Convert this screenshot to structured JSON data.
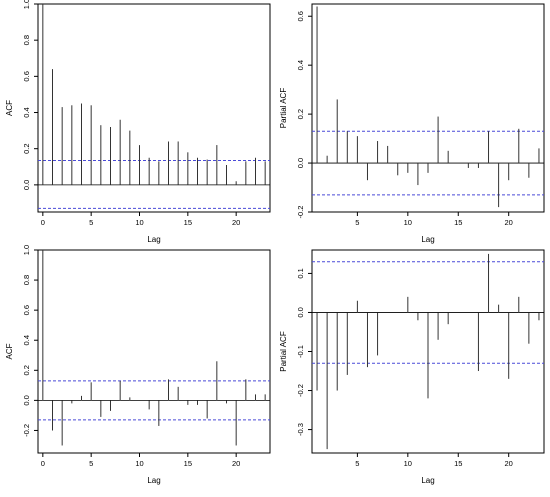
{
  "chart_data": [
    {
      "type": "bar",
      "xlabel": "Lag",
      "ylabel": "ACF",
      "x": [
        0,
        1,
        2,
        3,
        4,
        5,
        6,
        7,
        8,
        9,
        10,
        11,
        12,
        13,
        14,
        15,
        16,
        17,
        18,
        19,
        20,
        21,
        22,
        23
      ],
      "values": [
        1.0,
        0.64,
        0.43,
        0.44,
        0.45,
        0.44,
        0.33,
        0.32,
        0.36,
        0.3,
        0.22,
        0.15,
        0.13,
        0.24,
        0.24,
        0.18,
        0.15,
        0.14,
        0.22,
        0.11,
        0.02,
        0.13,
        0.15,
        0.13
      ],
      "conf_band": [
        0.135,
        -0.13
      ],
      "xlim": [
        -0.5,
        23.5
      ],
      "ylim": [
        -0.15,
        1.0
      ],
      "xticks": [
        0,
        5,
        10,
        15,
        20
      ],
      "xtick_labels": [
        "0",
        "5",
        "10",
        "15",
        "20"
      ],
      "yticks": [
        0,
        0.2,
        0.4,
        0.6,
        0.8,
        1.0
      ],
      "ytick_labels": [
        "0.0",
        "0.2",
        "0.4",
        "0.6",
        "0.8",
        "1.0"
      ]
    },
    {
      "type": "bar",
      "xlabel": "Lag",
      "ylabel": "Partial ACF",
      "x": [
        1,
        2,
        3,
        4,
        5,
        6,
        7,
        8,
        9,
        10,
        11,
        12,
        13,
        14,
        15,
        16,
        17,
        18,
        19,
        20,
        21,
        22,
        23
      ],
      "values": [
        0.64,
        0.03,
        0.26,
        0.13,
        0.11,
        -0.07,
        0.09,
        0.07,
        -0.05,
        -0.04,
        -0.09,
        -0.04,
        0.19,
        0.05,
        0.0,
        -0.02,
        -0.02,
        0.13,
        -0.18,
        -0.07,
        0.14,
        -0.06,
        0.06
      ],
      "conf_band": [
        0.13,
        -0.13
      ],
      "xlim": [
        0.5,
        23.5
      ],
      "ylim": [
        -0.2,
        0.65
      ],
      "xticks": [
        5,
        10,
        15,
        20
      ],
      "xtick_labels": [
        "5",
        "10",
        "15",
        "20"
      ],
      "yticks": [
        -0.2,
        0.0,
        0.2,
        0.4,
        0.6
      ],
      "ytick_labels": [
        "-0.2",
        "0.0",
        "0.2",
        "0.4",
        "0.6"
      ]
    },
    {
      "type": "bar",
      "xlabel": "Lag",
      "ylabel": "ACF",
      "x": [
        0,
        1,
        2,
        3,
        4,
        5,
        6,
        7,
        8,
        9,
        10,
        11,
        12,
        13,
        14,
        15,
        16,
        17,
        18,
        19,
        20,
        21,
        22,
        23
      ],
      "values": [
        1.0,
        -0.2,
        -0.3,
        -0.02,
        0.03,
        0.12,
        -0.11,
        -0.07,
        0.13,
        0.02,
        0.0,
        -0.06,
        -0.17,
        0.14,
        0.09,
        -0.03,
        -0.03,
        -0.12,
        0.26,
        -0.02,
        -0.3,
        0.14,
        0.04,
        0.04
      ],
      "conf_band": [
        0.13,
        -0.13
      ],
      "xlim": [
        -0.5,
        23.5
      ],
      "ylim": [
        -0.35,
        1.0
      ],
      "xticks": [
        0,
        5,
        10,
        15,
        20
      ],
      "xtick_labels": [
        "0",
        "5",
        "10",
        "15",
        "20"
      ],
      "yticks": [
        -0.2,
        0.0,
        0.2,
        0.4,
        0.6,
        0.8,
        1.0
      ],
      "ytick_labels": [
        "-0.2",
        "0.0",
        "0.2",
        "0.4",
        "0.6",
        "0.8",
        "1.0"
      ]
    },
    {
      "type": "bar",
      "xlabel": "Lag",
      "ylabel": "Partial ACF",
      "x": [
        1,
        2,
        3,
        4,
        5,
        6,
        7,
        8,
        9,
        10,
        11,
        12,
        13,
        14,
        15,
        16,
        17,
        18,
        19,
        20,
        21,
        22,
        23
      ],
      "values": [
        -0.2,
        -0.35,
        -0.2,
        -0.16,
        0.03,
        -0.14,
        -0.11,
        0.0,
        0.0,
        0.04,
        -0.02,
        -0.22,
        -0.07,
        -0.03,
        0.0,
        0.0,
        -0.15,
        0.15,
        0.02,
        -0.17,
        0.04,
        -0.08,
        -0.02
      ],
      "conf_band": [
        0.13,
        -0.13
      ],
      "xlim": [
        0.5,
        23.5
      ],
      "ylim": [
        -0.36,
        0.16
      ],
      "xticks": [
        5,
        10,
        15,
        20
      ],
      "xtick_labels": [
        "5",
        "10",
        "15",
        "20"
      ],
      "yticks": [
        -0.3,
        -0.2,
        -0.1,
        0.0,
        0.1
      ],
      "ytick_labels": [
        "-0.3",
        "-0.2",
        "-0.1",
        "0.0",
        "0.1"
      ]
    }
  ],
  "colors": {
    "bars": "#333333",
    "band": "#4a4ad8",
    "frame": "#000000"
  }
}
